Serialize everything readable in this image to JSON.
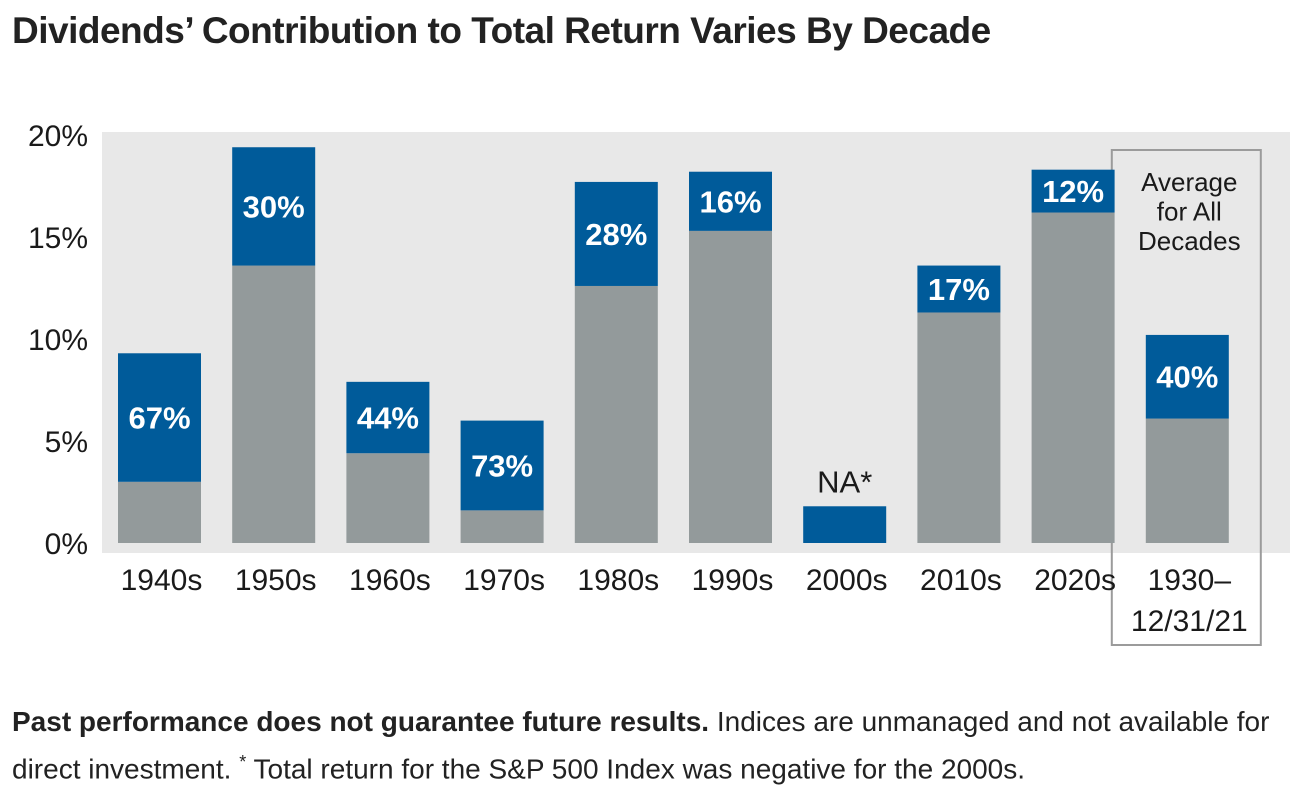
{
  "title": "Dividends’ Contribution to Total Return Varies By Decade",
  "footnote": {
    "bold": "Past performance does not guarantee future results.",
    "text1": " Indices are unmanaged and not available for direct investment. ",
    "marker": "*",
    "text2": " Total return for the S&P 500 Index was negative for the 2000s."
  },
  "colors": {
    "dividend": "#005b9a",
    "price": "#939a9b",
    "plot_background": "#e8e8e8",
    "box_border": "#9b9b9b"
  },
  "chart_data": {
    "type": "bar",
    "stacked": true,
    "title": "Dividends’ Contribution to Total Return Varies By Decade",
    "categories": [
      "1940s",
      "1950s",
      "1960s",
      "1970s",
      "1980s",
      "1990s",
      "2000s",
      "2010s",
      "2020s",
      "1930–12/31/21"
    ],
    "category_display": [
      [
        "1940s"
      ],
      [
        "1950s"
      ],
      [
        "1960s"
      ],
      [
        "1970s"
      ],
      [
        "1980s"
      ],
      [
        "1990s"
      ],
      [
        "2000s"
      ],
      [
        "2010s"
      ],
      [
        "2020s"
      ],
      [
        "1930–",
        "12/31/21"
      ]
    ],
    "series": [
      {
        "key": "price",
        "values": [
          3.0,
          13.6,
          4.4,
          1.6,
          12.6,
          15.3,
          0,
          11.3,
          16.2,
          6.1
        ]
      },
      {
        "key": "dividend",
        "values": [
          6.3,
          5.8,
          3.5,
          4.4,
          5.1,
          2.9,
          1.8,
          2.3,
          2.1,
          4.1
        ]
      }
    ],
    "data_labels": [
      "67%",
      "30%",
      "44%",
      "73%",
      "28%",
      "16%",
      "NA*",
      "17%",
      "12%",
      "40%"
    ],
    "highlight_box": {
      "category_index": 9,
      "label": [
        "Average",
        "for All",
        "Decades"
      ]
    },
    "yticks": [
      0,
      5,
      10,
      15,
      20
    ],
    "ytick_labels": [
      "0%",
      "5%",
      "10%",
      "15%",
      "20%"
    ],
    "ylim": [
      0,
      20.5
    ],
    "grid": false,
    "legend": "none"
  }
}
